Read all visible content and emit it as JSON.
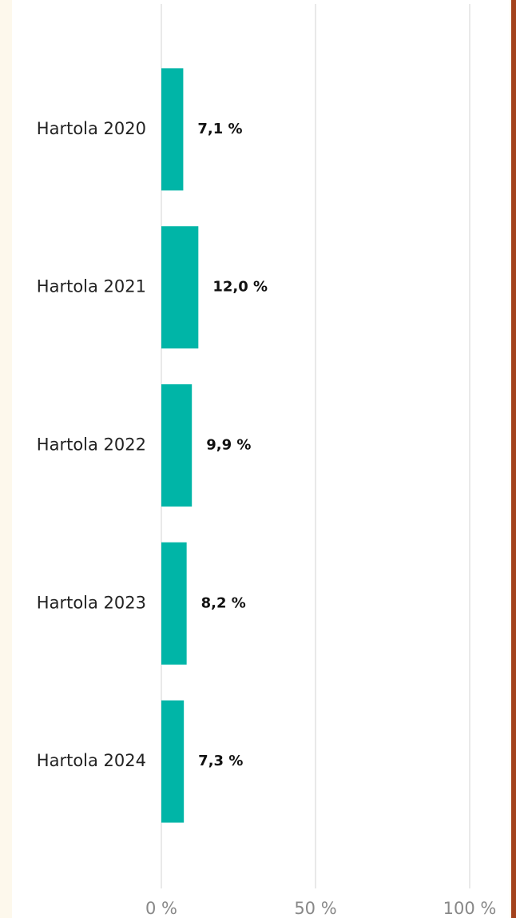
{
  "chart_data": {
    "type": "bar",
    "orientation": "horizontal",
    "categories": [
      "Hartola 2020",
      "Hartola 2021",
      "Hartola 2022",
      "Hartola 2023",
      "Hartola 2024"
    ],
    "values": [
      7.1,
      12.0,
      9.9,
      8.2,
      7.3
    ],
    "value_labels": [
      "7,1 %",
      "12,0 %",
      "9,9 %",
      "8,2 %",
      "7,3 %"
    ],
    "color": "#00b5a7",
    "xlim": [
      0,
      100
    ],
    "xticks": [
      {
        "value": 0,
        "label": "0 %"
      },
      {
        "value": 50,
        "label": "50 %"
      },
      {
        "value": 100,
        "label": "100 %"
      }
    ],
    "grid": true
  }
}
